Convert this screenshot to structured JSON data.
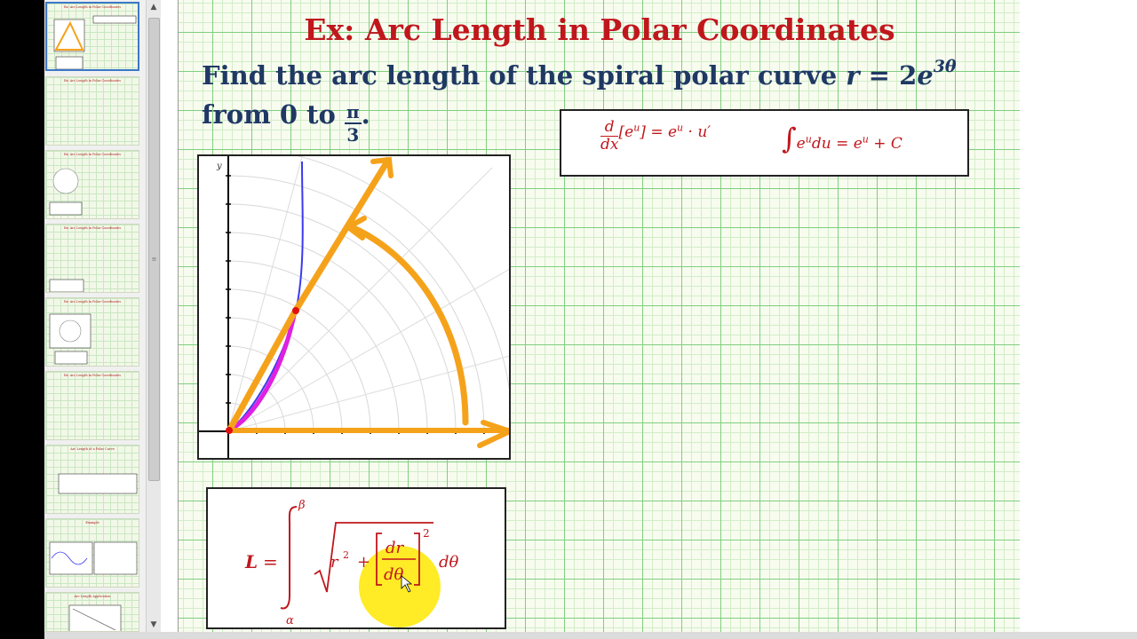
{
  "slide": {
    "title": "Ex:  Arc Length in Polar Coordinates",
    "prompt_line1_text": "Find the arc length of the spiral polar curve ",
    "prompt_line1_math_r": "r",
    "prompt_line1_math_eq": " = 2",
    "prompt_line1_math_e": "e",
    "prompt_line1_math_exp": "3θ",
    "prompt_line2_text": "from 0 to ",
    "prompt_line2_frac_num": "π",
    "prompt_line2_frac_den": "3",
    "prompt_line2_end": "."
  },
  "formula_box": {
    "deriv_num": "d",
    "deriv_den": "dx",
    "deriv_rhs": "[e",
    "deriv_sup1": "u",
    "deriv_rest": "] = e",
    "deriv_sup2": "u",
    "deriv_tail": " · u′",
    "integral_sign": "∫",
    "integral_e": "e",
    "integral_sup": "u",
    "integral_body": "du = e",
    "integral_sup2": "u",
    "integral_tail": " + C"
  },
  "arc_formula": {
    "lhs": "L",
    "eq": "=",
    "upper": "β",
    "lower": "α",
    "r2": "r",
    "r2_exp": "2",
    "plus": "+",
    "dr": "dr",
    "dtheta": "dθ",
    "outer_exp": "2",
    "tail": "dθ"
  },
  "graph": {
    "y_axis_label": "y"
  },
  "thumbnails": [
    {
      "title": "Ex: Arc Length in Polar Coordinates",
      "active": true
    },
    {
      "title": "Ex: Arc Length in Polar Coordinates",
      "active": false
    },
    {
      "title": "Ex: Arc Length in Polar Coordinates",
      "active": false
    },
    {
      "title": "Ex: Arc Length in Polar Coordinates",
      "active": false
    },
    {
      "title": "Ex: Arc Length in Polar Coordinates",
      "active": false
    },
    {
      "title": "Ex: Arc Length in Polar Coordinates",
      "active": false
    },
    {
      "title": "Arc Length of a Polar Curve",
      "active": false
    },
    {
      "title": "Example",
      "active": false
    },
    {
      "title": "Arc Length Application",
      "active": false
    }
  ],
  "colors": {
    "title_red": "#c0171c",
    "prompt_navy": "#1f3864",
    "grid_major": "#7fcf7f",
    "annotation_orange": "#f5a21b",
    "curve_blue": "#3a3af0",
    "curve_magenta": "#e020e0",
    "point_red": "#e01010",
    "highlight_yellow": "#ffe800"
  }
}
